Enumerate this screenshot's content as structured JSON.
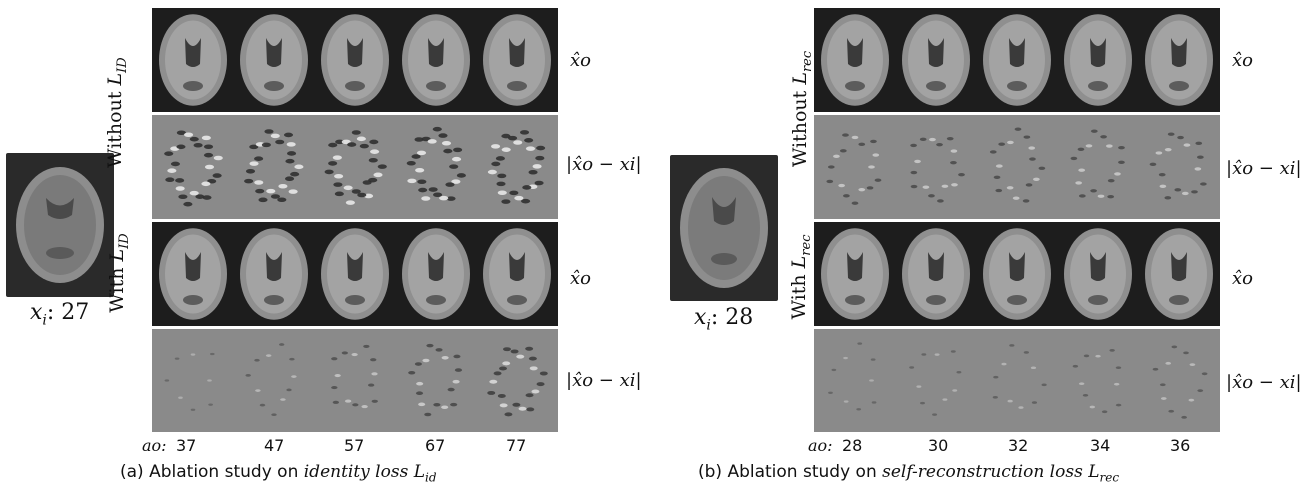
{
  "panel_a": {
    "input_label": "x_i: 27",
    "input_var": "x",
    "input_sub": "i",
    "input_age": ": 27",
    "group_top": "Without",
    "group_top_sub": "ID",
    "group_bottom": "With",
    "group_bottom_sub": "ID",
    "row_output": "x̂o",
    "row_diff": "|x̂o − xi|",
    "ages_prefix": "ao:",
    "ages": [
      "37",
      "47",
      "57",
      "67",
      "77"
    ],
    "caption_prefix": "(a) Ablation study on",
    "caption_term": "identity loss",
    "caption_sym": "L",
    "caption_sub": "id"
  },
  "panel_b": {
    "input_label": "x_i: 28",
    "input_var": "x",
    "input_sub": "i",
    "input_age": ": 28",
    "group_top": "Without",
    "group_top_sub": "rec",
    "group_bottom": "With",
    "group_bottom_sub": "rec",
    "row_output": "x̂o",
    "row_diff": "|x̂o − xi|",
    "ages_prefix": "ao:",
    "ages": [
      "28",
      "30",
      "32",
      "34",
      "36"
    ],
    "caption_prefix": "(b) Ablation study on",
    "caption_term": "self-reconstruction loss",
    "caption_sym": "L",
    "caption_sub": "rec"
  },
  "colors": {
    "dark_bg": "#1d1d1d",
    "diff_bg": "#8a8a8a",
    "brain": "#9a9a9a"
  }
}
